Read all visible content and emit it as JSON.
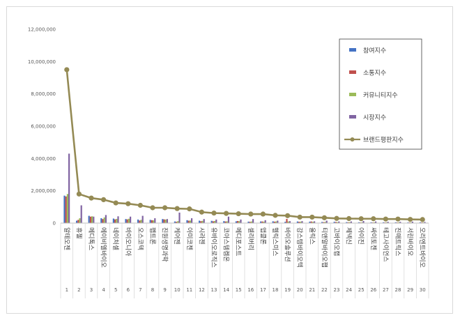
{
  "chart_data": {
    "type": "bar",
    "title": "",
    "xlabel": "",
    "ylabel": "",
    "ylim": [
      0,
      12000000
    ],
    "yticks": [
      0,
      2000000,
      4000000,
      6000000,
      8000000,
      10000000,
      12000000
    ],
    "ytick_labels": [
      "0",
      "2,000,000",
      "4,000,000",
      "6,000,000",
      "8,000,000",
      "10,000,000",
      "12,000,000"
    ],
    "grid": false,
    "legend_position": "top-right",
    "ranks": [
      "1",
      "2",
      "3",
      "4",
      "5",
      "6",
      "7",
      "8",
      "9",
      "10",
      "11",
      "12",
      "13",
      "14",
      "15",
      "16",
      "17",
      "18",
      "19",
      "20",
      "21",
      "22",
      "23",
      "24",
      "25",
      "26",
      "27",
      "28",
      "29",
      "30"
    ],
    "categories": [
      "알테오젠",
      "휴젤",
      "메디톡스",
      "에이비엘바이오",
      "네이처셀",
      "바이오니아",
      "오스코텍",
      "펩트론",
      "진원생명과학",
      "케어젠",
      "아미코젠",
      "시라젠",
      "유바이오로직스",
      "코아스템켐온",
      "메디포스트",
      "셀리버리",
      "앱클론",
      "헬릭스미스",
      "바이오솔루션",
      "강스템바이오텍",
      "올릭스",
      "티앤알바이오팹",
      "고바이오랩",
      "제넥신",
      "아이진",
      "싸이토젠",
      "테고사이언스",
      "진매트릭스",
      "서린바이오",
      "오리엔트바이오"
    ],
    "series": [
      {
        "name": "참여지수",
        "color": "#4472c4",
        "kind": "bar",
        "values": [
          1700000,
          150000,
          450000,
          300000,
          280000,
          250000,
          220000,
          200000,
          250000,
          100000,
          180000,
          150000,
          140000,
          120000,
          110000,
          90000,
          100000,
          110000,
          80000,
          100000,
          90000,
          70000,
          80000,
          60000,
          50000,
          50000,
          50000,
          50000,
          40000,
          50000
        ]
      },
      {
        "name": "소통지수",
        "color": "#c0504d",
        "kind": "bar",
        "values": [
          1650000,
          200000,
          400000,
          250000,
          230000,
          230000,
          160000,
          180000,
          230000,
          80000,
          150000,
          120000,
          110000,
          100000,
          130000,
          80000,
          100000,
          90000,
          260000,
          80000,
          100000,
          60000,
          70000,
          50000,
          40000,
          40000,
          40000,
          40000,
          40000,
          40000
        ]
      },
      {
        "name": "커뮤니티지수",
        "color": "#9bbb59",
        "kind": "bar",
        "values": [
          1800000,
          300000,
          420000,
          350000,
          260000,
          270000,
          200000,
          170000,
          220000,
          120000,
          160000,
          140000,
          130000,
          110000,
          120000,
          100000,
          90000,
          100000,
          100000,
          90000,
          80000,
          70000,
          60000,
          60000,
          50000,
          50000,
          50000,
          50000,
          40000,
          40000
        ]
      },
      {
        "name": "시장지수",
        "color": "#8064a2",
        "kind": "bar",
        "values": [
          4300000,
          1100000,
          400000,
          500000,
          420000,
          400000,
          450000,
          300000,
          250000,
          650000,
          300000,
          250000,
          220000,
          400000,
          220000,
          250000,
          180000,
          150000,
          120000,
          120000,
          110000,
          150000,
          100000,
          100000,
          130000,
          100000,
          80000,
          80000,
          90000,
          70000
        ]
      },
      {
        "name": "브랜드평판지수",
        "color": "#948a54",
        "kind": "line",
        "values": [
          9500000,
          1800000,
          1550000,
          1450000,
          1250000,
          1200000,
          1100000,
          950000,
          950000,
          900000,
          880000,
          680000,
          620000,
          600000,
          580000,
          560000,
          560000,
          480000,
          460000,
          370000,
          370000,
          330000,
          290000,
          280000,
          270000,
          270000,
          250000,
          250000,
          230000,
          220000
        ]
      }
    ]
  }
}
